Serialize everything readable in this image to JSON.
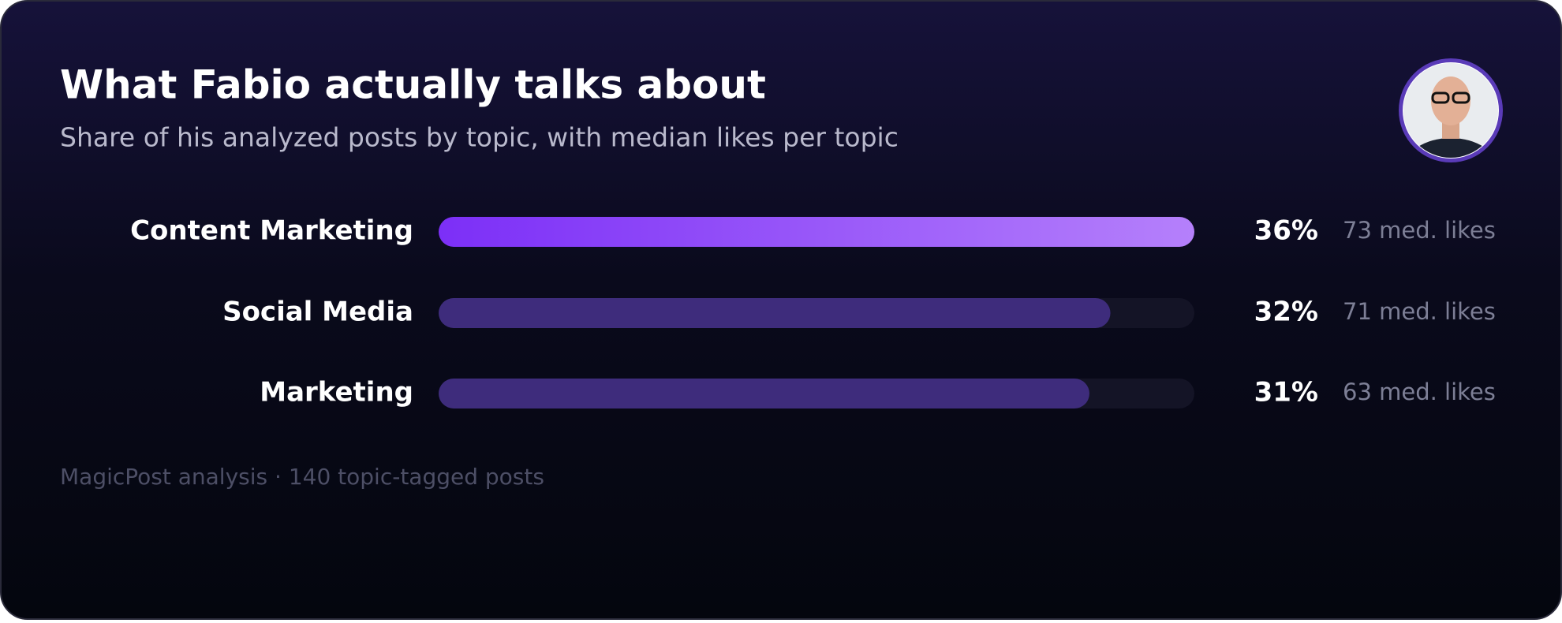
{
  "chart_data": {
    "type": "bar",
    "orientation": "horizontal",
    "title": "What Fabio actually talks about",
    "subtitle": "Share of his analyzed posts by topic, with median likes per topic",
    "categories": [
      "Content Marketing",
      "Social Media",
      "Marketing"
    ],
    "values": [
      36,
      32,
      31
    ],
    "value_labels": [
      "36%",
      "32%",
      "31%"
    ],
    "median_likes_labels": [
      "73 med. likes",
      "71 med. likes",
      "63 med. likes"
    ],
    "colors": [
      "#7c2ff7",
      "#3e2c7c",
      "#3e2c7c"
    ],
    "highlight_color_end": "#b580fb",
    "xlim": [
      0,
      36
    ],
    "footnote": "MagicPost analysis · 140 topic-tagged posts"
  }
}
